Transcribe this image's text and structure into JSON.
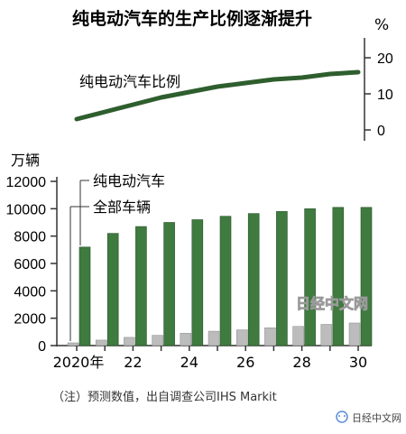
{
  "title": "纯电动汽车的生产比例逐渐提升",
  "note": "（注）预测数值，出自调查公司IHS Markit",
  "watermark": "日经中文网",
  "source_badge": "日经中文网",
  "colors": {
    "bev": "#3f7a3f",
    "total": "#bcbcbc",
    "line": "#2e5e2e",
    "axis": "#333333",
    "badge_icon": "#5b8fd6"
  },
  "chart_data": [
    {
      "type": "line",
      "series": [
        {
          "name": "纯电动汽车比例",
          "x": [
            "2020",
            "2021",
            "2022",
            "2023",
            "2024",
            "2025",
            "2026",
            "2027",
            "2028",
            "2029",
            "2030"
          ],
          "values": [
            3,
            5,
            7,
            9,
            10.5,
            12,
            13,
            14,
            14.5,
            15.5,
            16
          ]
        }
      ],
      "yunit": "%",
      "yticks": [
        "0",
        "10",
        "20"
      ],
      "ylim": [
        0,
        20
      ]
    },
    {
      "type": "bar",
      "categories": [
        "2020年",
        "",
        "22",
        "",
        "24",
        "",
        "26",
        "",
        "28",
        "",
        "30"
      ],
      "series": [
        {
          "name": "纯电动汽车",
          "values": [
            200,
            400,
            600,
            750,
            900,
            1050,
            1150,
            1300,
            1400,
            1550,
            1650
          ]
        },
        {
          "name": "全部车辆",
          "values": [
            7200,
            8200,
            8700,
            9000,
            9200,
            9450,
            9650,
            9800,
            10000,
            10100,
            10100
          ]
        }
      ],
      "yunit": "万辆",
      "yticks": [
        "0",
        "2000",
        "4000",
        "6000",
        "8000",
        "10000",
        "12000"
      ],
      "ylim": [
        0,
        12000
      ],
      "legend": "top-left, leader lines"
    }
  ]
}
